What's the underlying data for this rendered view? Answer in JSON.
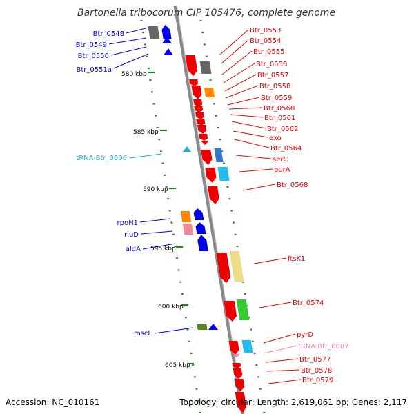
{
  "title": "Bartonella tribocorum CIP 105476, complete genome",
  "footer": {
    "accession": "Accession: NC_010161",
    "summary": "Topology: circular; Length: 2,619,061 bp; Genes: 2,117"
  },
  "colors": {
    "red": "#ee0000",
    "blue": "#0000ee",
    "gray": "#666666",
    "orange": "#ff8800",
    "lightblue": "#22bbee",
    "steelblue": "#3377cc",
    "pink": "#ee8899",
    "yellow": "#eedd88",
    "green": "#33cc33",
    "olive": "#558822",
    "trna_cyan": "#22aadd",
    "trna_pink": "#ee88bb",
    "tick_green": "#228822"
  },
  "kbp_labels": [
    "580 kbp",
    "585 kbp",
    "590 kbp",
    "595 kbp",
    "600 kbp",
    "605 kbp"
  ],
  "left_labels": [
    "Btr_0548",
    "Btr_0549",
    "Btr_0550",
    "Btr_0551a",
    "tRNA-Btr_0006",
    "rpoH1",
    "rluD",
    "aldA",
    "mscL"
  ],
  "right_labels": [
    "Btr_0553",
    "Btr_0554",
    "Btr_0555",
    "Btr_0556",
    "Btr_0557",
    "Btr_0558",
    "Btr_0559",
    "Btr_0560",
    "Btr_0561",
    "Btr_0562",
    "exo",
    "Btr_0564",
    "serC",
    "purA",
    "Btr_0568",
    "ftsK1",
    "Btr_0574",
    "pyrD",
    "tRNA-Btr_0007",
    "Btr_0577",
    "Btr_0578",
    "Btr_0579"
  ]
}
